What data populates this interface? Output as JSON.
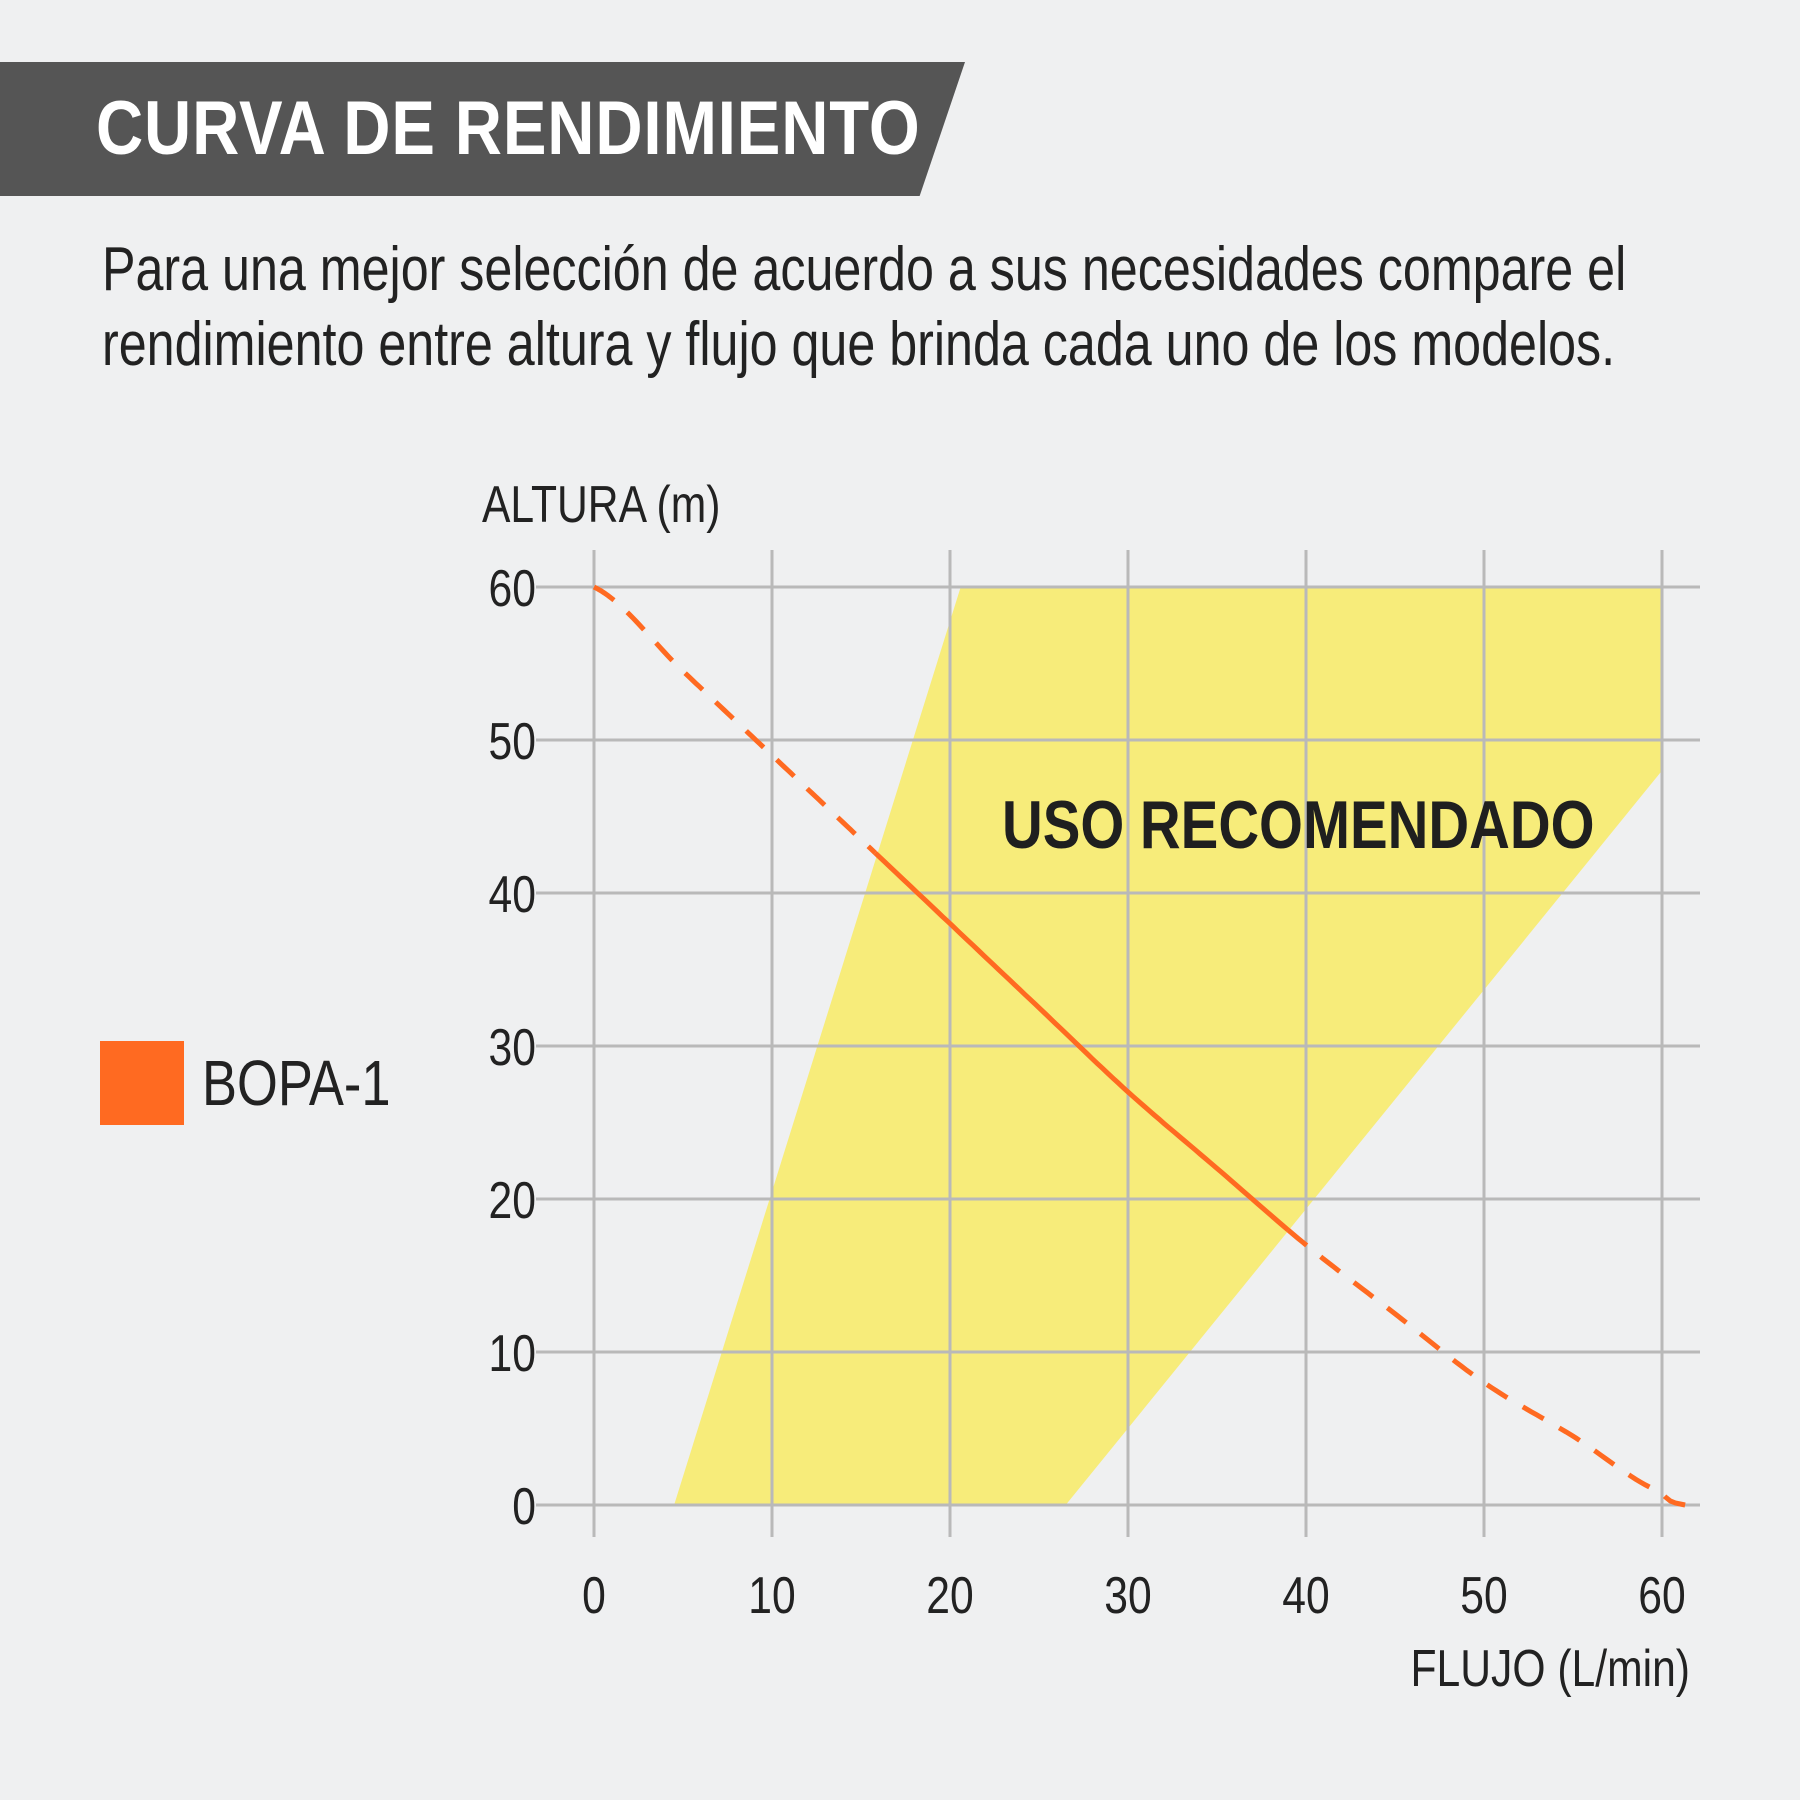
{
  "header": {
    "title": "CURVA DE RENDIMIENTO",
    "subtitle_lines": [
      "Para una mejor selección de acuerdo a sus necesidades compare el",
      "rendimiento entre altura y flujo que brinda cada uno de los modelos."
    ]
  },
  "legend": {
    "items": [
      {
        "label": "BOPA-1",
        "color": "#ff6a21"
      }
    ]
  },
  "chart_data": {
    "type": "line",
    "xlabel": "FLUJO (L/min)",
    "ylabel": "ALTURA (m)",
    "xlim": [
      0,
      60
    ],
    "ylim": [
      0,
      60
    ],
    "x_ticks": [
      "0",
      "10",
      "20",
      "30",
      "40",
      "50",
      "60"
    ],
    "y_ticks": [
      "0",
      "10",
      "20",
      "30",
      "40",
      "50",
      "60"
    ],
    "grid": true,
    "legend_position": "left",
    "colors": {
      "series": "#ff6a21",
      "region": "#f7ec7a",
      "grid": "#b9b9b9"
    },
    "region": {
      "label": "USO RECOMENDADO",
      "polygon": [
        [
          4.5,
          0
        ],
        [
          20.6,
          60
        ],
        [
          60,
          60
        ],
        [
          60,
          48
        ],
        [
          26.5,
          0
        ]
      ]
    },
    "series": [
      {
        "name": "BOPA-1",
        "points": [
          [
            0,
            60
          ],
          [
            5,
            54.5
          ],
          [
            10,
            49
          ],
          [
            15,
            43.5
          ],
          [
            20,
            38
          ],
          [
            25,
            32.5
          ],
          [
            30,
            27
          ],
          [
            35,
            22
          ],
          [
            40,
            17
          ],
          [
            45,
            12.5
          ],
          [
            50,
            8
          ],
          [
            55,
            4.5
          ],
          [
            60,
            0.8
          ],
          [
            61.3,
            0
          ]
        ],
        "solid_range": [
          15.8,
          39
        ]
      }
    ]
  }
}
